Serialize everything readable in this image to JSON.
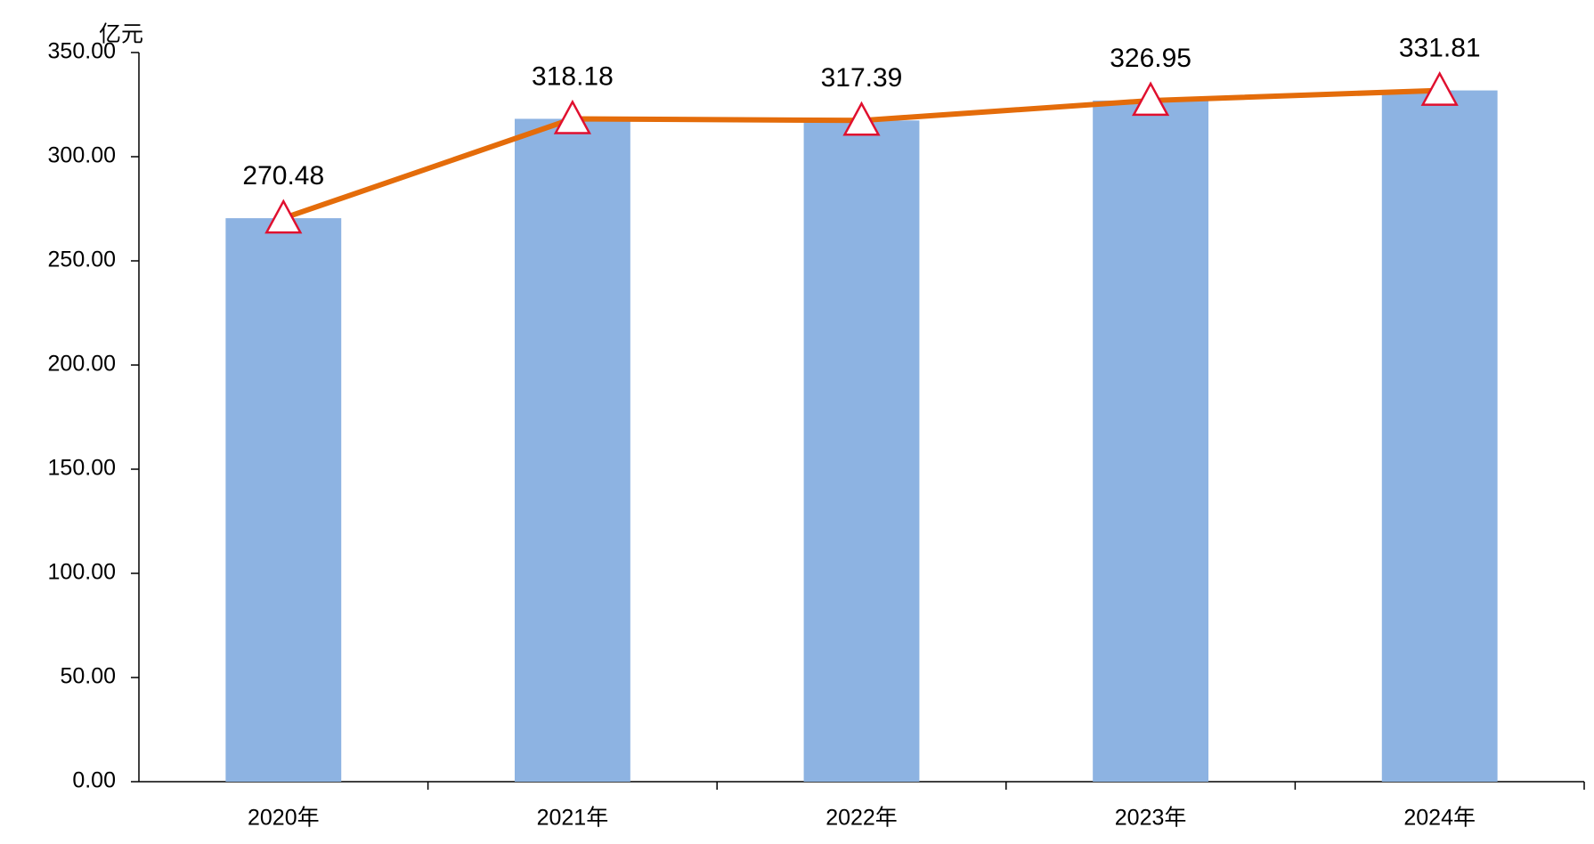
{
  "chart_data": {
    "type": "bar-line",
    "unit": "亿元",
    "categories": [
      "2020年",
      "2021年",
      "2022年",
      "2023年",
      "2024年"
    ],
    "values": [
      270.48,
      318.18,
      317.39,
      326.95,
      331.81
    ],
    "color": "#8db3e2",
    "line_color": "#e46c0a",
    "marker": "triangle",
    "marker_stroke": "#e0102f",
    "ylim": [
      0,
      350
    ],
    "yticks": [
      {
        "value": 0,
        "label": "0.00"
      },
      {
        "value": 50,
        "label": "50.00"
      },
      {
        "value": 100,
        "label": "100.00"
      },
      {
        "value": 150,
        "label": "150.00"
      },
      {
        "value": 200,
        "label": "200.00"
      },
      {
        "value": 250,
        "label": "250.00"
      },
      {
        "value": 300,
        "label": "300.00"
      },
      {
        "value": 350,
        "label": "350.00"
      }
    ],
    "grid": false
  }
}
